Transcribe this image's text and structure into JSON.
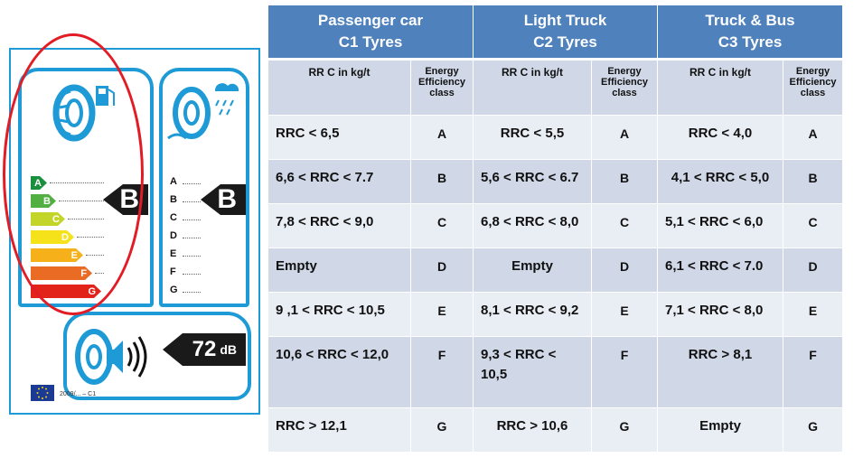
{
  "label": {
    "fuel_grades": [
      {
        "letter": "A",
        "color": "#1a8f3c",
        "width": 18
      },
      {
        "letter": "B",
        "color": "#52b043",
        "width": 28
      },
      {
        "letter": "C",
        "color": "#c4d52a",
        "width": 38
      },
      {
        "letter": "D",
        "color": "#f5e21a",
        "width": 48
      },
      {
        "letter": "E",
        "color": "#f5b01a",
        "width": 58
      },
      {
        "letter": "F",
        "color": "#ea6b23",
        "width": 68
      },
      {
        "letter": "G",
        "color": "#e2231a",
        "width": 78
      }
    ],
    "fuel_rating": "B",
    "wet_grades": [
      "A",
      "B",
      "C",
      "D",
      "E",
      "F",
      "G"
    ],
    "wet_rating": "B",
    "noise_value": "72",
    "noise_unit": "dB",
    "regulation_code": "2009/... – C1",
    "colors": {
      "frame": "#1e9ad6",
      "highlight": "#e21b24"
    }
  },
  "table": {
    "groups": [
      {
        "line1": "Passenger car",
        "line2": "C1 Tyres"
      },
      {
        "line1": "Light Truck",
        "line2": "C2 Tyres"
      },
      {
        "line1": "Truck & Bus",
        "line2": "C3 Tyres"
      }
    ],
    "subheaders": {
      "rrc": "RR C in kg/t",
      "energy_l1": "Energy",
      "energy_l2": "Efficiency",
      "energy_l3": "class"
    },
    "rows": [
      {
        "c1": "RRC < 6,5",
        "c1_class": "A",
        "c2": "RRC < 5,5",
        "c2_class": "A",
        "c3": "RRC < 4,0",
        "c3_class": "A"
      },
      {
        "c1": "6,6 < RRC < 7.7",
        "c1_class": "B",
        "c2": "5,6 < RRC < 6.7",
        "c2_class": "B",
        "c3": "4,1  < RRC < 5,0",
        "c3_class": "B"
      },
      {
        "c1": "7,8 < RRC < 9,0",
        "c1_class": "C",
        "c2": "6,8 < RRC < 8,0",
        "c2_class": "C",
        "c3": "5,1 < RRC < 6,0",
        "c3_class": "C"
      },
      {
        "c1": "Empty",
        "c1_class": "D",
        "c2": "Empty",
        "c2_class": "D",
        "c3": "6,1 < RRC < 7.0",
        "c3_class": "D"
      },
      {
        "c1": "9 ,1 < RRC < 10,5",
        "c1_class": "E",
        "c2": "8,1 < RRC < 9,2",
        "c2_class": "E",
        "c3": "7,1 < RRC < 8,0",
        "c3_class": "E"
      },
      {
        "c1": "10,6 < RRC < 12,0",
        "c1_class": "F",
        "c2": "9,3 < RRC < 10,5",
        "c2_class": "F",
        "c3": "RRC > 8,1",
        "c3_class": "F"
      },
      {
        "c1": "RRC > 12,1",
        "c1_class": "G",
        "c2": "RRC > 10,6",
        "c2_class": "G",
        "c3": "Empty",
        "c3_class": "G"
      }
    ],
    "colors": {
      "header": "#4f81bd",
      "row_dark": "#d0d8e8",
      "row_light": "#e9edf4"
    }
  }
}
